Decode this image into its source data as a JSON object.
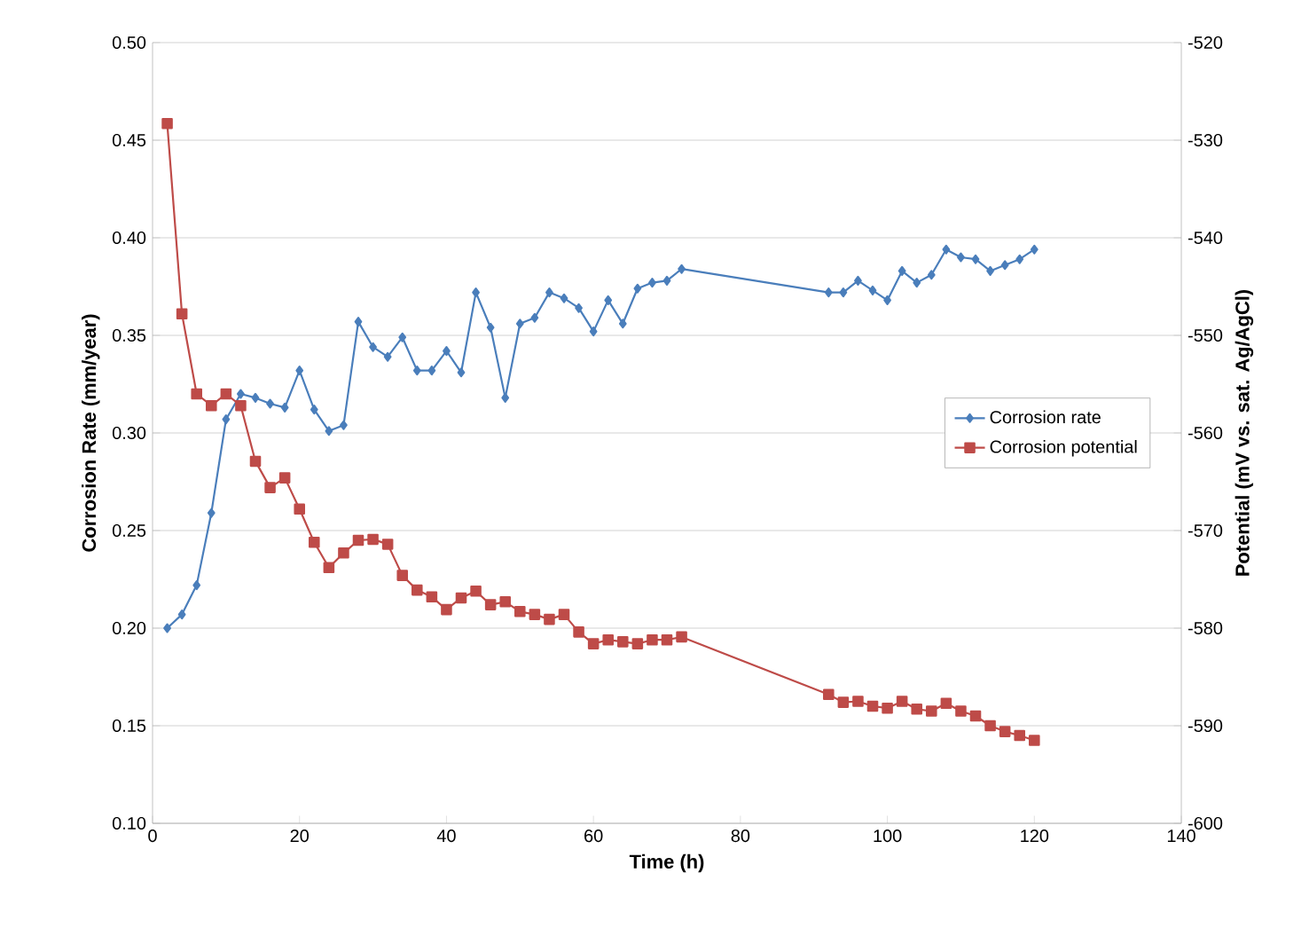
{
  "chart_data": {
    "type": "line",
    "xlabel": "Time (h)",
    "ylabel": "Corrosion Rate (mm/year)",
    "y2label": "Potential (mV vs. sat. Ag/AgCl)",
    "xlim": [
      0,
      140
    ],
    "xticks": [
      0,
      20,
      40,
      60,
      80,
      100,
      120,
      140
    ],
    "ylim": [
      0.1,
      0.5
    ],
    "yticks": [
      {
        "value": 0.1,
        "label": "0.10"
      },
      {
        "value": 0.15,
        "label": "0.15"
      },
      {
        "value": 0.2,
        "label": "0.20"
      },
      {
        "value": 0.25,
        "label": "0.25"
      },
      {
        "value": 0.3,
        "label": "0.30"
      },
      {
        "value": 0.35,
        "label": "0.35"
      },
      {
        "value": 0.4,
        "label": "0.40"
      },
      {
        "value": 0.45,
        "label": "0.45"
      },
      {
        "value": 0.5,
        "label": "0.50"
      }
    ],
    "y2lim": [
      -600,
      -520
    ],
    "y2ticks": [
      -600,
      -590,
      -580,
      -570,
      -560,
      -550,
      -540,
      -530,
      -520
    ],
    "grid": "y",
    "legend": "right",
    "line_style": "solid",
    "series": [
      {
        "name": "Corrosion rate",
        "color": "#4a7ebb",
        "marker": "diamond",
        "x": [
          2,
          4,
          6,
          8,
          10,
          12,
          14,
          16,
          18,
          20,
          22,
          24,
          26,
          28,
          30,
          32,
          34,
          36,
          38,
          40,
          42,
          44,
          46,
          48,
          50,
          52,
          54,
          56,
          58,
          60,
          62,
          64,
          66,
          68,
          70,
          72,
          92,
          94,
          96,
          98,
          100,
          102,
          104,
          106,
          108,
          110,
          112,
          114,
          116,
          118,
          120
        ],
        "values": [
          0.2,
          0.207,
          0.222,
          0.259,
          0.307,
          0.32,
          0.318,
          0.315,
          0.313,
          0.332,
          0.312,
          0.301,
          0.304,
          0.357,
          0.344,
          0.339,
          0.349,
          0.332,
          0.332,
          0.342,
          0.331,
          0.372,
          0.354,
          0.318,
          0.356,
          0.359,
          0.372,
          0.369,
          0.364,
          0.352,
          0.368,
          0.356,
          0.374,
          0.377,
          0.378,
          0.384,
          0.372,
          0.372,
          0.378,
          0.373,
          0.368,
          0.383,
          0.377,
          0.381,
          0.394,
          0.39,
          0.389,
          0.383,
          0.386,
          0.389,
          0.394
        ]
      },
      {
        "name": "Corrosion potential",
        "color": "#be4b48",
        "marker": "square",
        "axis": "y2",
        "x": [
          2,
          4,
          6,
          8,
          10,
          12,
          14,
          16,
          18,
          20,
          22,
          24,
          26,
          28,
          30,
          32,
          34,
          36,
          38,
          40,
          42,
          44,
          46,
          48,
          50,
          52,
          54,
          56,
          58,
          60,
          62,
          64,
          66,
          68,
          70,
          72,
          92,
          94,
          96,
          98,
          100,
          102,
          104,
          106,
          108,
          110,
          112,
          114,
          116,
          118,
          120
        ],
        "values": [
          -528.3,
          -547.8,
          -556.0,
          -557.2,
          -556.0,
          -557.2,
          -562.9,
          -565.6,
          -564.6,
          -567.8,
          -571.2,
          -573.8,
          -572.3,
          -571.0,
          -570.9,
          -571.4,
          -574.6,
          -576.1,
          -576.8,
          -578.1,
          -576.9,
          -576.2,
          -577.6,
          -577.3,
          -578.3,
          -578.6,
          -579.1,
          -578.6,
          -580.4,
          -581.6,
          -581.2,
          -581.4,
          -581.6,
          -581.2,
          -581.2,
          -580.9,
          -586.8,
          -587.6,
          -587.5,
          -588.0,
          -588.2,
          -587.5,
          -588.3,
          -588.5,
          -587.7,
          -588.5,
          -589.0,
          -590.0,
          -590.6,
          -591.0,
          -591.5
        ]
      }
    ]
  }
}
